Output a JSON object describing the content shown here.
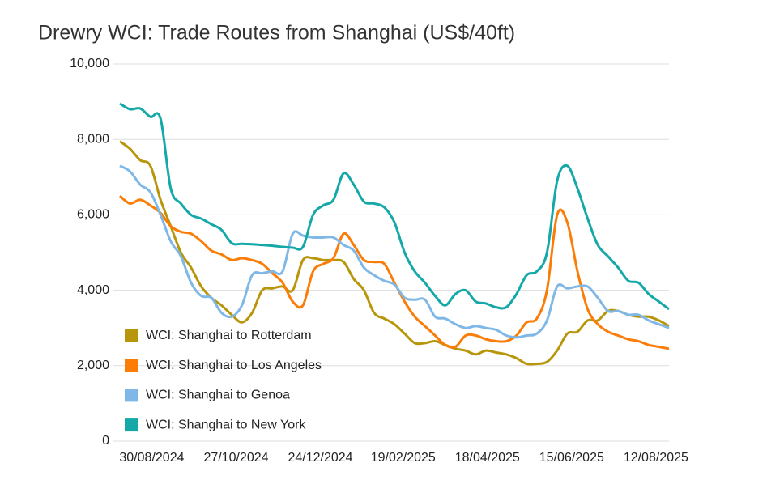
{
  "chart_data": {
    "type": "line",
    "title": "Drewry WCI: Trade Routes from Shanghai (US$/40ft)",
    "x": [
      "08/08/2024",
      "15/08/2024",
      "22/08/2024",
      "29/08/2024",
      "05/09/2024",
      "12/09/2024",
      "19/09/2024",
      "26/09/2024",
      "03/10/2024",
      "10/10/2024",
      "17/10/2024",
      "24/10/2024",
      "31/10/2024",
      "07/11/2024",
      "14/11/2024",
      "21/11/2024",
      "28/11/2024",
      "05/12/2024",
      "12/12/2024",
      "19/12/2024",
      "26/12/2024",
      "02/01/2025",
      "09/01/2025",
      "16/01/2025",
      "23/01/2025",
      "30/01/2025",
      "06/02/2025",
      "13/02/2025",
      "20/02/2025",
      "27/02/2025",
      "06/03/2025",
      "13/03/2025",
      "20/03/2025",
      "27/03/2025",
      "03/04/2025",
      "10/04/2025",
      "17/04/2025",
      "24/04/2025",
      "01/05/2025",
      "08/05/2025",
      "15/05/2025",
      "22/05/2025",
      "29/05/2025",
      "05/06/2025",
      "12/06/2025",
      "19/06/2025",
      "26/06/2025",
      "03/07/2025",
      "10/07/2025",
      "17/07/2025",
      "24/07/2025",
      "31/07/2025",
      "07/08/2025",
      "14/08/2025",
      "21/08/2025"
    ],
    "series": [
      {
        "name": "WCI: Shanghai to Rotterdam",
        "color": "#b8960c",
        "values": [
          7950,
          7750,
          7450,
          7300,
          6400,
          5700,
          5000,
          4600,
          4100,
          3800,
          3600,
          3350,
          3150,
          3400,
          4000,
          4050,
          4100,
          4000,
          4800,
          4850,
          4800,
          4800,
          4750,
          4300,
          4000,
          3400,
          3250,
          3100,
          2850,
          2600,
          2600,
          2650,
          2550,
          2450,
          2400,
          2300,
          2400,
          2350,
          2300,
          2200,
          2050,
          2050,
          2100,
          2400,
          2850,
          2900,
          3200,
          3200,
          3450,
          3450,
          3350,
          3300,
          3300,
          3200,
          3050
        ]
      },
      {
        "name": "WCI: Shanghai to Los Angeles",
        "color": "#fb7d07",
        "values": [
          6500,
          6300,
          6400,
          6250,
          6050,
          5700,
          5550,
          5500,
          5300,
          5050,
          4950,
          4800,
          4850,
          4800,
          4700,
          4450,
          4200,
          3700,
          3600,
          4500,
          4700,
          4850,
          5500,
          5200,
          4800,
          4750,
          4700,
          4200,
          3700,
          3300,
          3050,
          2800,
          2550,
          2500,
          2800,
          2800,
          2700,
          2650,
          2650,
          2800,
          3150,
          3250,
          4000,
          6000,
          5800,
          4500,
          3500,
          3100,
          2900,
          2800,
          2700,
          2650,
          2550,
          2500,
          2450
        ]
      },
      {
        "name": "WCI: Shanghai to Genoa",
        "color": "#7fb8e6",
        "values": [
          7300,
          7150,
          6800,
          6600,
          6000,
          5300,
          4900,
          4200,
          3850,
          3800,
          3400,
          3300,
          3600,
          4400,
          4450,
          4500,
          4500,
          5500,
          5450,
          5400,
          5400,
          5400,
          5200,
          5050,
          4600,
          4400,
          4250,
          4150,
          3800,
          3750,
          3750,
          3300,
          3250,
          3100,
          3000,
          3050,
          3000,
          2950,
          2800,
          2750,
          2800,
          2850,
          3200,
          4100,
          4050,
          4100,
          4100,
          3800,
          3450,
          3450,
          3350,
          3350,
          3200,
          3100,
          3000
        ]
      },
      {
        "name": "WCI: Shanghai to New York",
        "color": "#14a8a8",
        "values": [
          8950,
          8800,
          8820,
          8600,
          8550,
          6700,
          6300,
          6000,
          5900,
          5750,
          5600,
          5250,
          5230,
          5220,
          5200,
          5180,
          5150,
          5130,
          5150,
          6000,
          6250,
          6400,
          7100,
          6800,
          6350,
          6300,
          6200,
          5800,
          5000,
          4500,
          4200,
          3850,
          3600,
          3900,
          4000,
          3700,
          3650,
          3550,
          3550,
          3900,
          4400,
          4500,
          5000,
          6900,
          7300,
          6700,
          5900,
          5200,
          4900,
          4600,
          4250,
          4200,
          3900,
          3700,
          3500
        ]
      }
    ],
    "xlim": [
      "08/08/2024",
      "21/08/2025"
    ],
    "xticks": [
      "30/08/2024",
      "27/10/2024",
      "24/12/2024",
      "19/02/2025",
      "18/04/2025",
      "15/06/2025",
      "12/08/2025"
    ],
    "ylim": [
      0,
      10000
    ],
    "yticks": [
      0,
      {
        "value": 2000,
        "label": "2,000"
      },
      {
        "value": 4000,
        "label": "4,000"
      },
      {
        "value": 6000,
        "label": "6,000"
      },
      {
        "value": 8000,
        "label": "8,000"
      },
      {
        "value": 10000,
        "label": "10,000"
      }
    ],
    "grid": true
  }
}
